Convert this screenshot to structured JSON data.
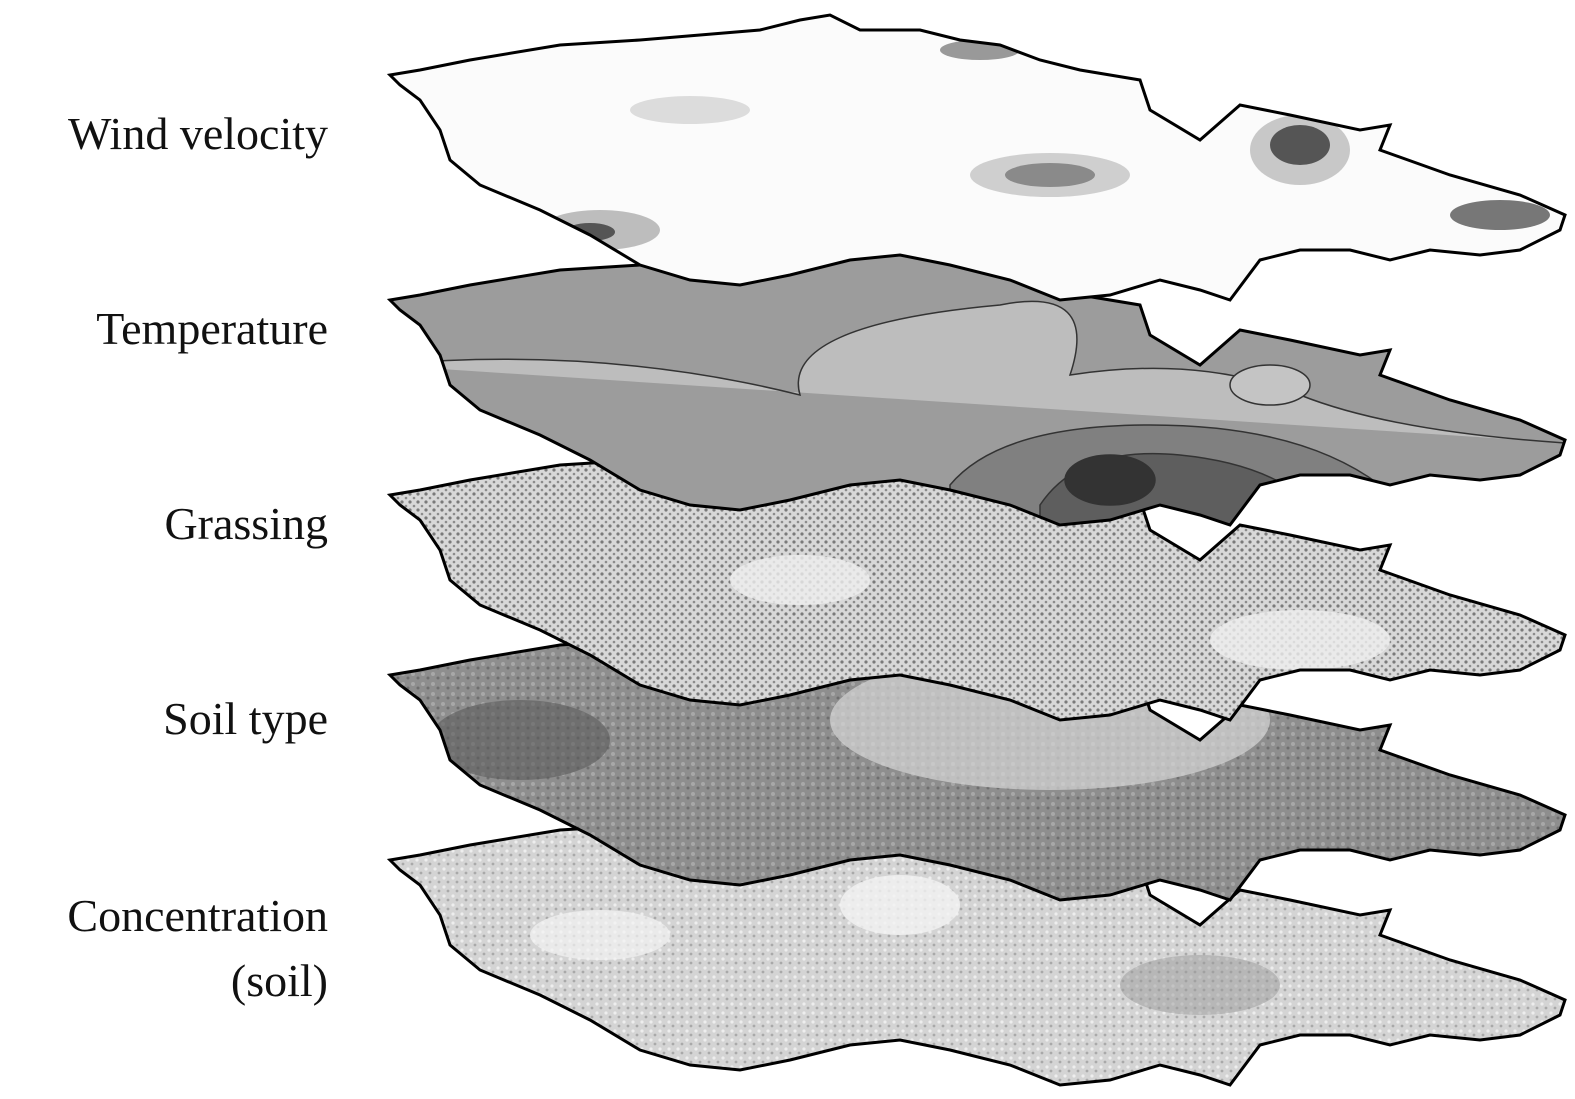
{
  "layers": [
    {
      "label": "Wind velocity"
    },
    {
      "label": "Temperature"
    },
    {
      "label": "Grassing"
    },
    {
      "label": "Soil type"
    },
    {
      "label": "Concentration",
      "label_line2": "(soil)"
    }
  ]
}
